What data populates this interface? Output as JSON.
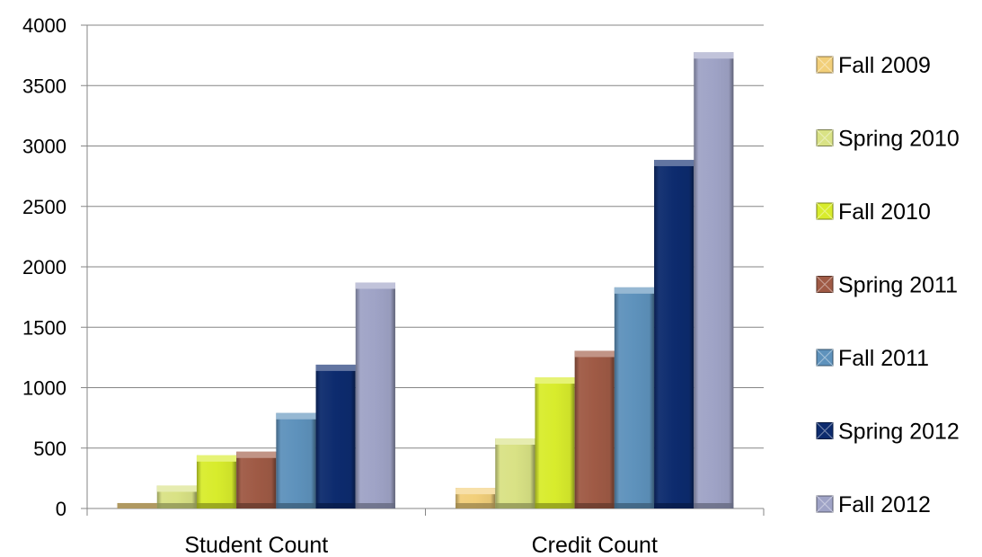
{
  "chart_data": {
    "type": "bar",
    "title": "",
    "xlabel": "",
    "ylabel": "",
    "categories": [
      "Student Count",
      "Credit Count"
    ],
    "ylim": [
      0,
      4000
    ],
    "yticks": [
      0,
      500,
      1000,
      1500,
      2000,
      2500,
      3000,
      3500,
      4000
    ],
    "grid": true,
    "legend_position": "right",
    "series": [
      {
        "name": "Fall 2009",
        "color": "#F2CF7A",
        "values": [
          45,
          170
        ]
      },
      {
        "name": "Spring 2010",
        "color": "#D9E285",
        "values": [
          190,
          580
        ]
      },
      {
        "name": "Fall 2010",
        "color": "#D8EC2C",
        "values": [
          440,
          1085
        ]
      },
      {
        "name": "Spring 2011",
        "color": "#9F5A45",
        "values": [
          470,
          1305
        ]
      },
      {
        "name": "Fall 2011",
        "color": "#5E92BC",
        "values": [
          790,
          1830
        ]
      },
      {
        "name": "Spring 2012",
        "color": "#0D2B6E",
        "values": [
          1190,
          2885
        ]
      },
      {
        "name": "Fall 2012",
        "color": "#9FA3C6",
        "values": [
          1870,
          3775
        ]
      }
    ]
  }
}
